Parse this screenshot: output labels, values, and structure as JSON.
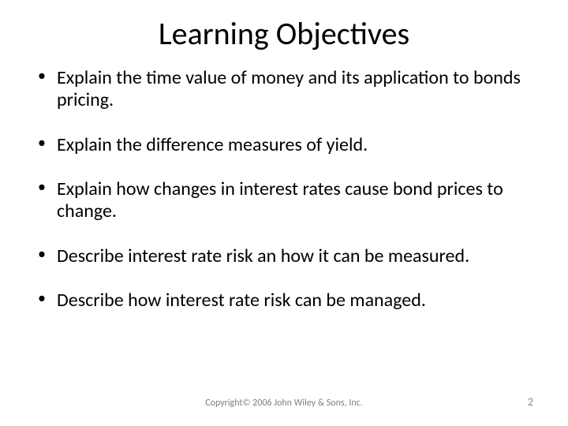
{
  "title": "Learning Objectives",
  "bullets": [
    "Explain the time value of money and its application to bonds pricing.",
    "Explain the difference measures of yield.",
    "Explain how changes in interest rates cause bond prices to change.",
    "Describe interest rate risk an how it can be measured.",
    "Describe how interest rate risk can be managed."
  ],
  "footer": {
    "copyright": "Copyright© 2006 John Wiley & Sons, Inc.",
    "page_number": "2"
  },
  "style": {
    "background_color": "#ffffff",
    "text_color": "#000000",
    "footer_color": "#7f7f7f",
    "title_fontsize": 40,
    "bullet_fontsize": 24,
    "footer_fontsize": 12
  }
}
